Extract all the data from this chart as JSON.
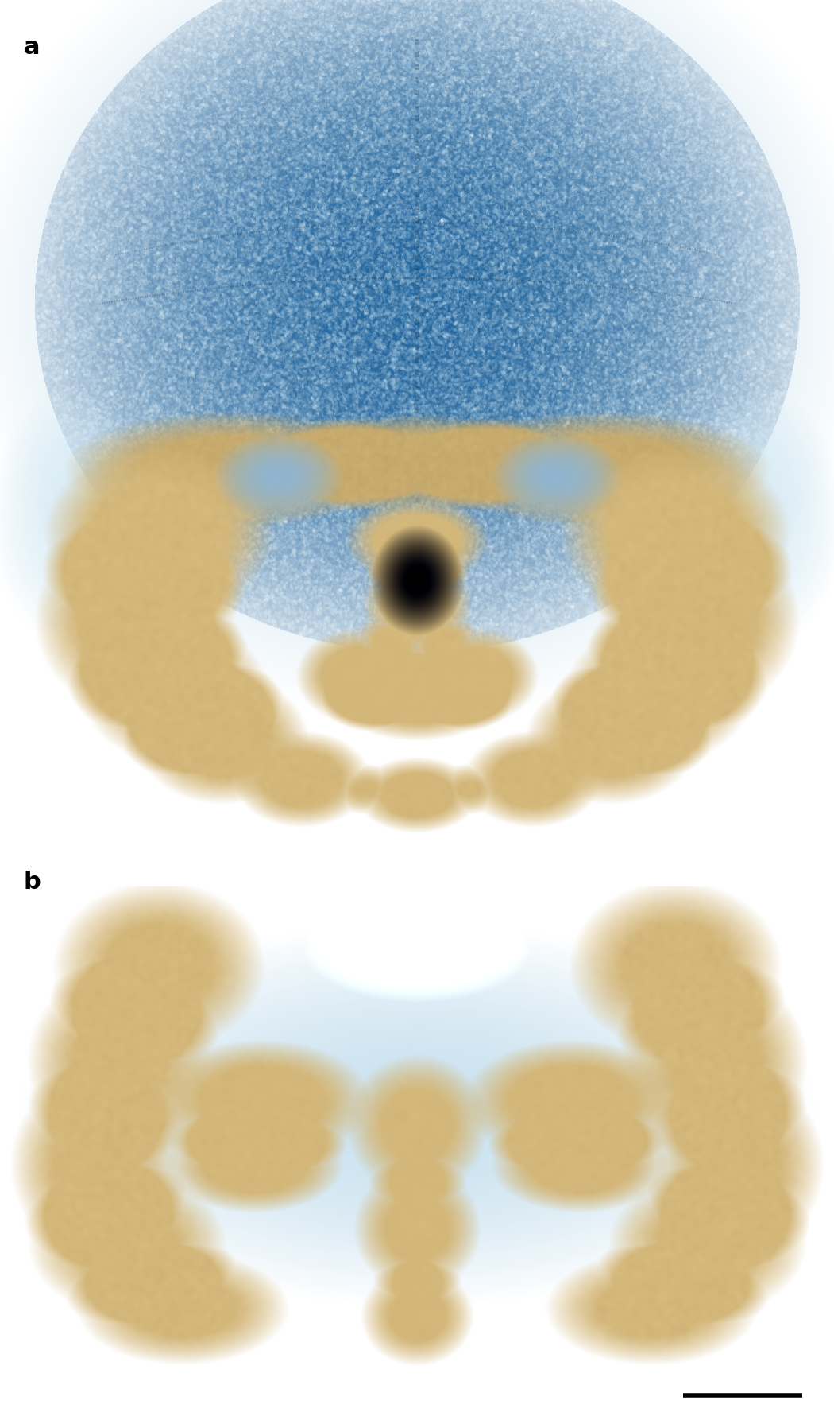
{
  "background_color": "#ffffff",
  "panel_a_label": "a",
  "panel_b_label": "b",
  "label_fontsize": 22,
  "label_fontweight": "bold",
  "label_color": "#000000",
  "scalebar_color": "#000000",
  "scalebar_linewidth": 4,
  "fig_width": 10.5,
  "fig_height": 17.76,
  "dpi": 100,
  "skull_blue": "#b0d4e8",
  "skull_tan": "#d4b87a",
  "skull_tan_dark": "#b89650",
  "skull_blue_dark": "#7aadc8",
  "panel_a_ystart": 0.385,
  "panel_b_yend": 0.355
}
